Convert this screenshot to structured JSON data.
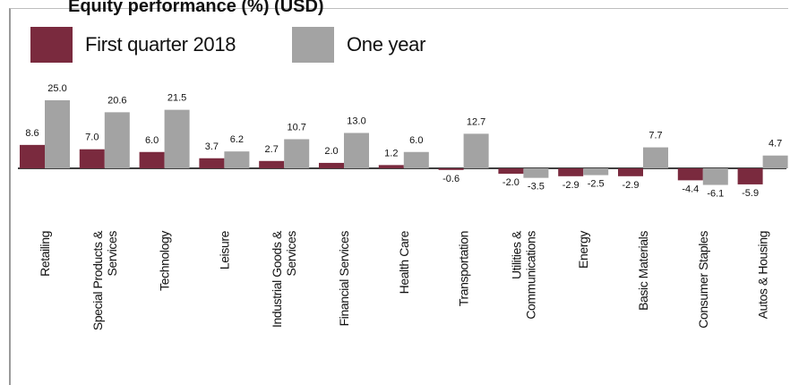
{
  "chart_data": {
    "type": "bar",
    "title": "Equity performance (%) (USD)",
    "categories": [
      "Retailing",
      "Special Products & Services",
      "Technology",
      "Leisure",
      "Industrial Goods & Services",
      "Financial Services",
      "Health Care",
      "Transportation",
      "Utilities & Communications",
      "Energy",
      "Basic Materials",
      "Consumer Staples",
      "Autos & Housing"
    ],
    "category_lines": [
      [
        "Retailing"
      ],
      [
        "Special Products &",
        "Services"
      ],
      [
        "Technology"
      ],
      [
        "Leisure"
      ],
      [
        "Industrial Goods &",
        "Services"
      ],
      [
        "Financial Services"
      ],
      [
        "Health Care"
      ],
      [
        "Transportation"
      ],
      [
        "Utilities &",
        "Communications"
      ],
      [
        "Energy"
      ],
      [
        "Basic Materials"
      ],
      [
        "Consumer Staples"
      ],
      [
        "Autos & Housing"
      ]
    ],
    "series": [
      {
        "name": "First quarter 2018",
        "color": "#7a2a3e",
        "values": [
          8.6,
          7.0,
          6.0,
          3.7,
          2.7,
          2.0,
          1.2,
          -0.6,
          -2.0,
          -2.9,
          -2.9,
          -4.4,
          -5.9
        ],
        "labels": [
          "8.6",
          "7.0",
          "6.0",
          "3.7",
          "2.7",
          "2.0",
          "1.2",
          "-0.6",
          "-2.0",
          "-2.9",
          "-2.9",
          "-4.4",
          "-5.9"
        ]
      },
      {
        "name": "One year",
        "color": "#a3a3a3",
        "values": [
          25.0,
          20.6,
          21.5,
          6.2,
          10.7,
          13.0,
          6.0,
          12.7,
          -3.5,
          -2.5,
          7.7,
          -6.1,
          4.7
        ],
        "labels": [
          "25.0",
          "20.6",
          "21.5",
          "6.2",
          "10.7",
          "13.0",
          "6.0",
          "12.7",
          "-3.5",
          "-2.5",
          "7.7",
          "-6.1",
          "4.7"
        ]
      }
    ],
    "grid": false,
    "legend_position": "top-left"
  }
}
